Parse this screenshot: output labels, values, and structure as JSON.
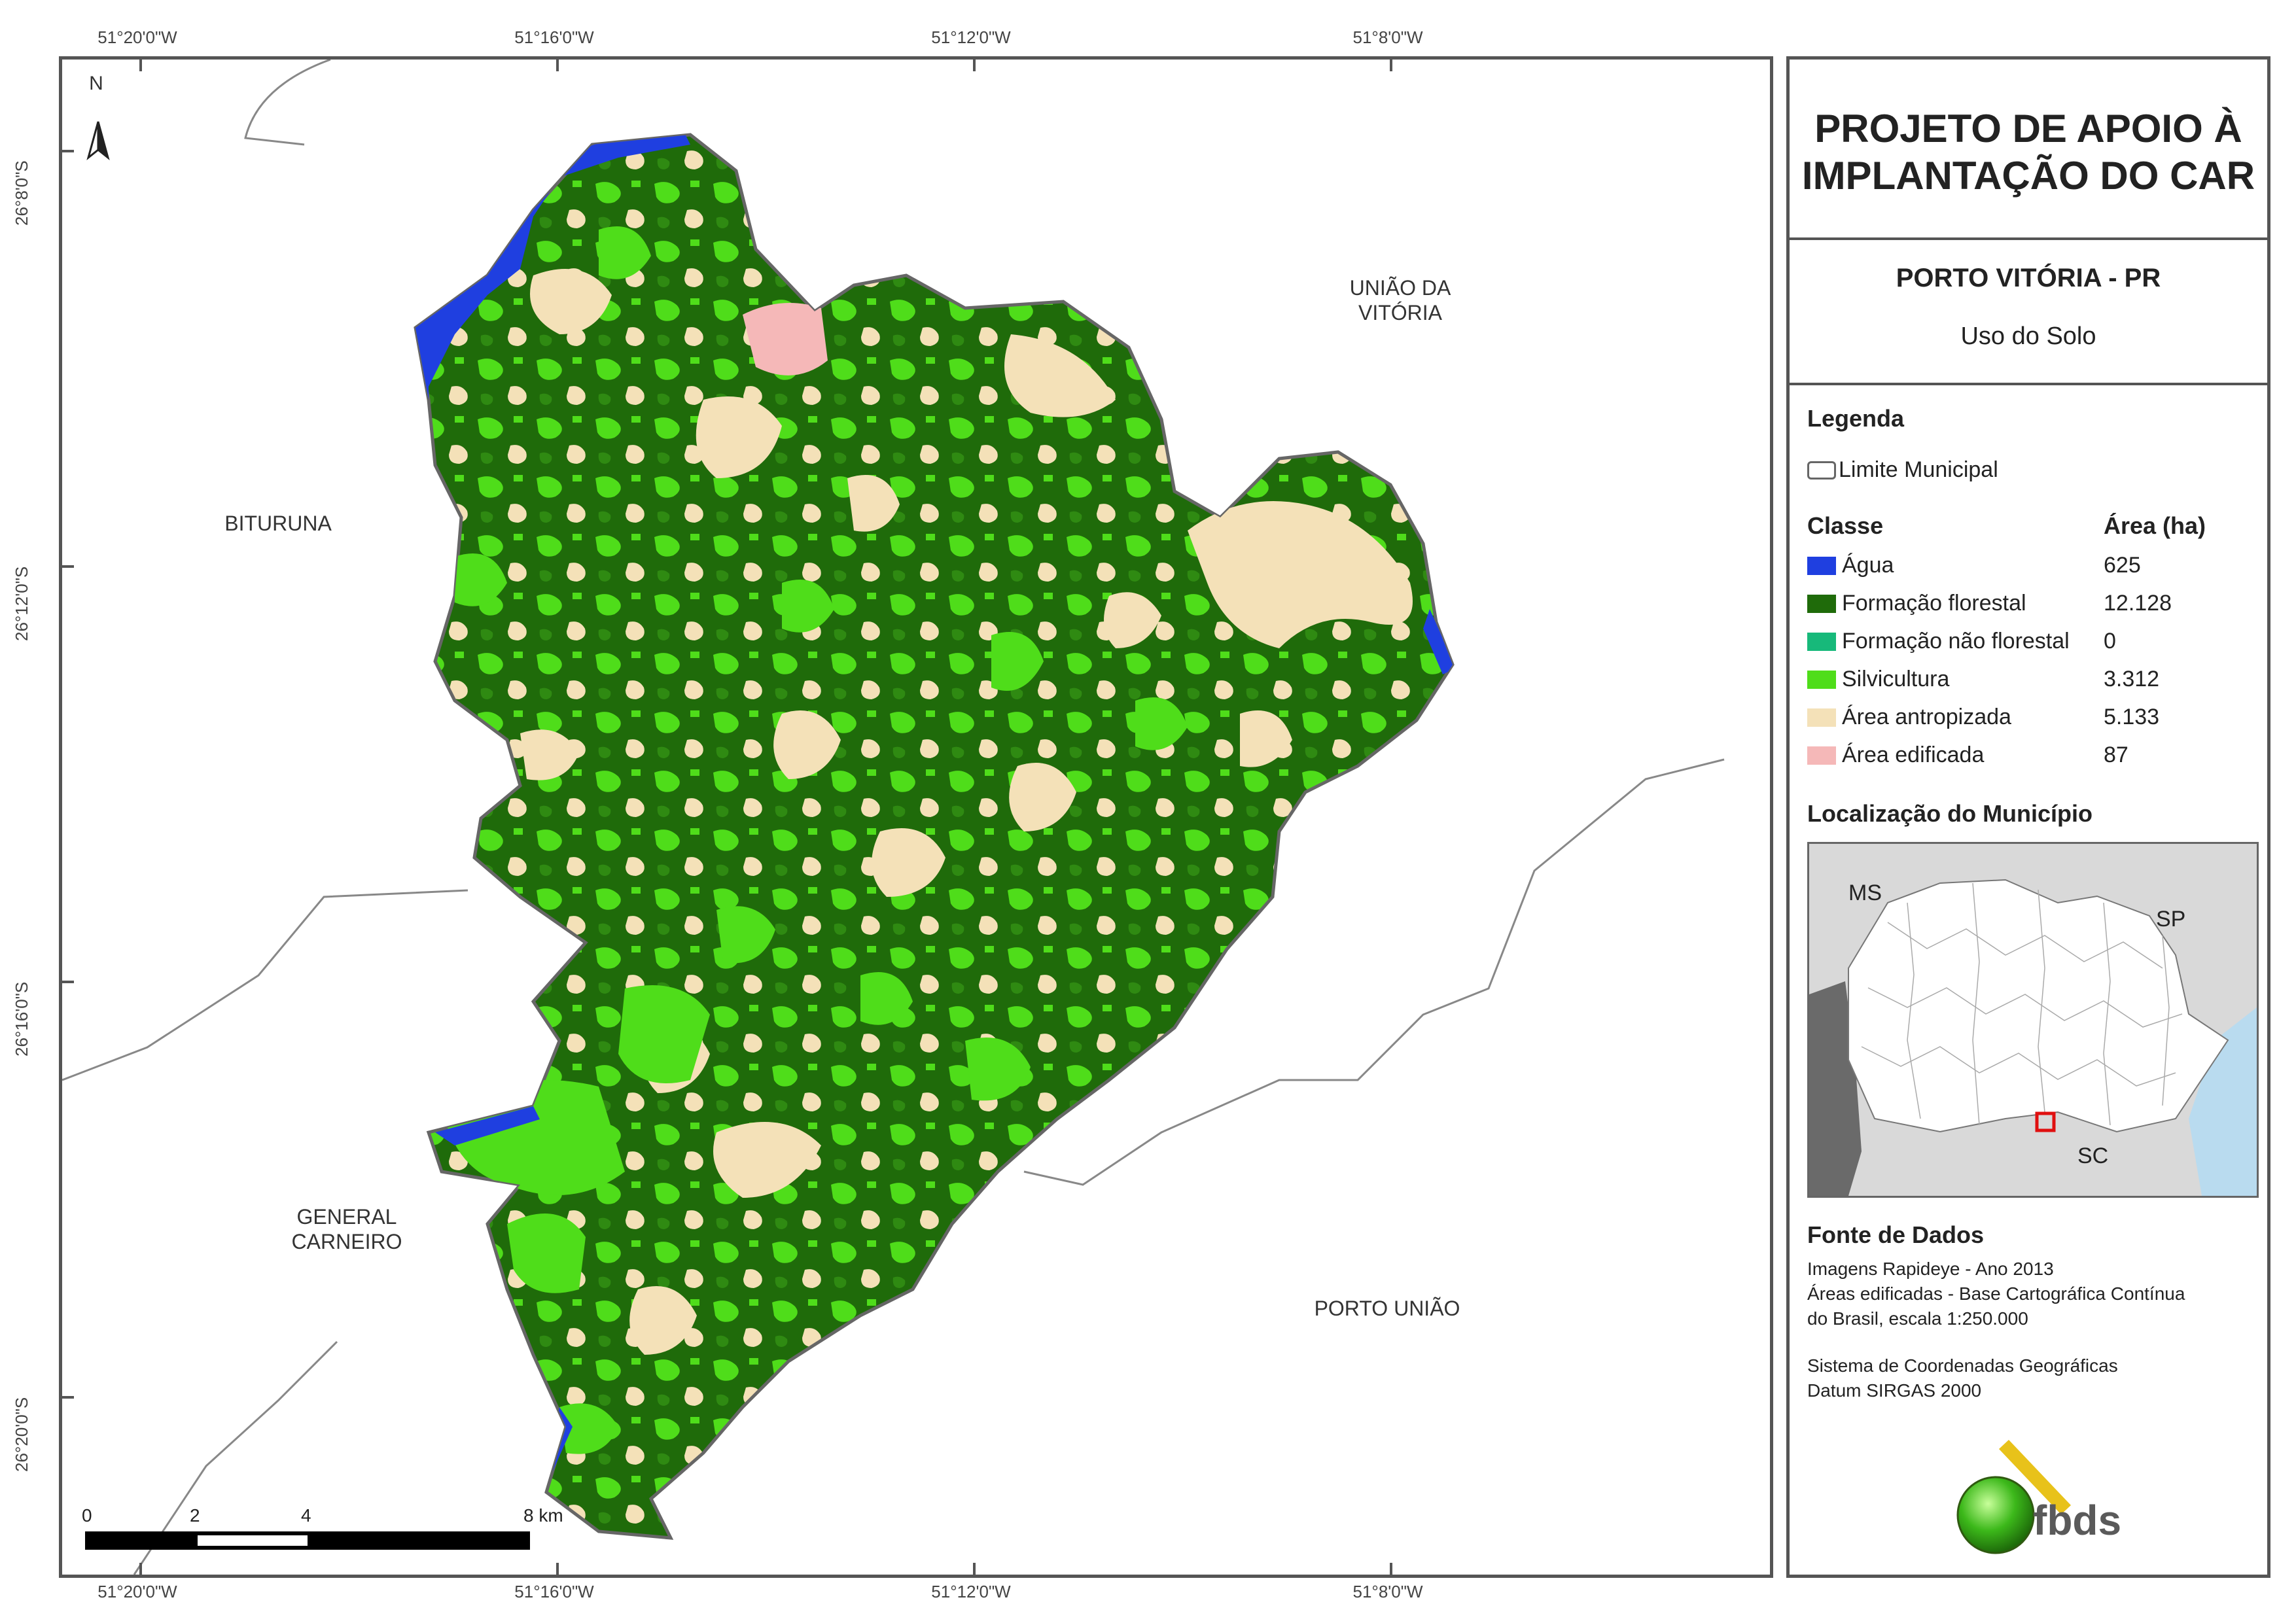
{
  "top_coords": [
    "51°20'0\"W",
    "51°16'0\"W",
    "51°12'0\"W",
    "51°8'0\"W"
  ],
  "bottom_coords": [
    "51°20'0\"W",
    "51°16'0\"W",
    "51°12'0\"W",
    "51°8'0\"W"
  ],
  "left_coords": [
    "26°8'0\"S",
    "26°12'0\"S",
    "26°16'0\"S",
    "26°20'0\"S"
  ],
  "north": "N",
  "places": {
    "uniao": "UNIÃO DA\nVITÓRIA",
    "bituruna": "BITURUNA",
    "general": "GENERAL\nCARNEIRO",
    "porto_uniao": "PORTO UNIÃO"
  },
  "scale": {
    "labels": [
      "0",
      "2",
      "4",
      "8 km"
    ]
  },
  "header": {
    "title": "PROJETO DE APOIO À\nIMPLANTAÇÃO DO CAR"
  },
  "subtitle": {
    "municipio": "PORTO VITÓRIA - PR",
    "tema": "Uso do Solo"
  },
  "legend": {
    "heading": "Legenda",
    "limite": "Limite Municipal",
    "classe_heading": "Classe",
    "area_heading": "Área (ha)",
    "items": [
      {
        "label": "Água",
        "area": "625",
        "color": "#1f3fe0"
      },
      {
        "label": "Formação florestal",
        "area": "12.128",
        "color": "#1f6b0a"
      },
      {
        "label": "Formação não florestal",
        "area": "0",
        "color": "#17b97a"
      },
      {
        "label": "Silvicultura",
        "area": "3.312",
        "color": "#4fdd1a"
      },
      {
        "label": "Área antropizada",
        "area": "5.133",
        "color": "#f4e1b8"
      },
      {
        "label": "Área edificada",
        "area": "87",
        "color": "#f5b8b8"
      }
    ]
  },
  "locator": {
    "heading": "Localização do Município",
    "ms": "MS",
    "sp": "SP",
    "sc": "SC"
  },
  "fonte": {
    "heading": "Fonte de Dados",
    "lines": "Imagens Rapideye - Ano 2013\nÁreas edificadas - Base Cartográfica Contínua\ndo Brasil, escala 1:250.000",
    "srs": "Sistema de Coordenadas Geográficas\nDatum SIRGAS 2000"
  },
  "logo": {
    "text": "fbds"
  }
}
